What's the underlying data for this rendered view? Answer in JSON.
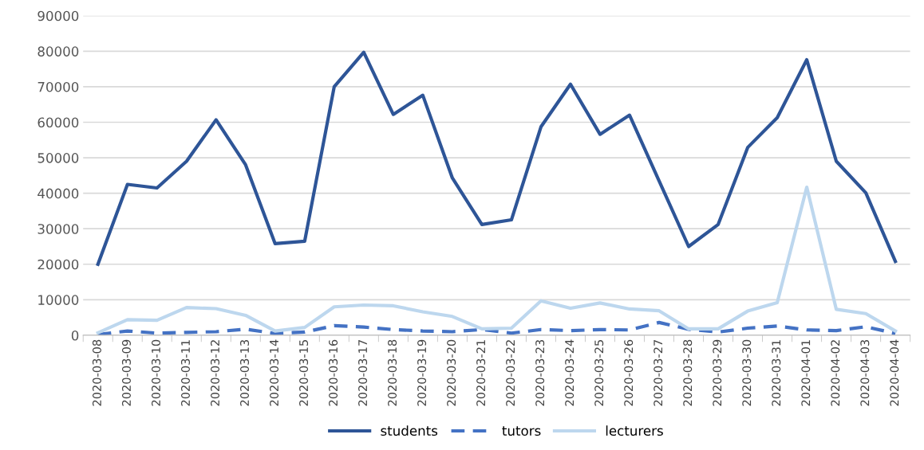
{
  "chart_data": {
    "type": "line",
    "categories": [
      "2020-03-08",
      "2020-03-09",
      "2020-03-10",
      "2020-03-11",
      "2020-03-12",
      "2020-03-13",
      "2020-03-14",
      "2020-03-15",
      "2020-03-16",
      "2020-03-17",
      "2020-03-18",
      "2020-03-19",
      "2020-03-20",
      "2020-03-21",
      "2020-03-22",
      "2020-03-23",
      "2020-03-24",
      "2020-03-25",
      "2020-03-26",
      "2020-03-27",
      "2020-03-28",
      "2020-03-29",
      "2020-03-30",
      "2020-03-31",
      "2020-04-01",
      "2020-04-02",
      "2020-04-03",
      "2020-04-04"
    ],
    "series": [
      {
        "name": "students",
        "color": "#2e5597",
        "line_style": "solid",
        "values": [
          20000,
          42500,
          41500,
          49000,
          60700,
          48000,
          25800,
          26500,
          70000,
          79700,
          62200,
          67600,
          44300,
          31200,
          32500,
          58700,
          70700,
          56600,
          62000,
          43500,
          25000,
          31200,
          52900,
          61300,
          77600,
          49000,
          40100,
          20800
        ]
      },
      {
        "name": "tutors",
        "color": "#4472c4",
        "line_style": "dashed",
        "values": [
          200,
          1200,
          600,
          800,
          1000,
          1700,
          500,
          900,
          2700,
          2300,
          1600,
          1200,
          1000,
          1600,
          600,
          1600,
          1300,
          1600,
          1500,
          3600,
          1700,
          900,
          2000,
          2600,
          1500,
          1300,
          2400,
          500
        ]
      },
      {
        "name": "lecturers",
        "color": "#bdd7ee",
        "line_style": "solid",
        "values": [
          700,
          4400,
          4200,
          7800,
          7500,
          5600,
          1200,
          2200,
          8000,
          8500,
          8300,
          6600,
          5300,
          1800,
          2000,
          9700,
          7600,
          9100,
          7400,
          6900,
          1800,
          1800,
          6800,
          9200,
          41700,
          7300,
          6100,
          1200
        ]
      }
    ],
    "ylim": [
      0,
      90000
    ],
    "yticks": [
      0,
      10000,
      20000,
      30000,
      40000,
      50000,
      60000,
      70000,
      80000,
      90000
    ],
    "grid": "y",
    "legend": "bottom"
  }
}
